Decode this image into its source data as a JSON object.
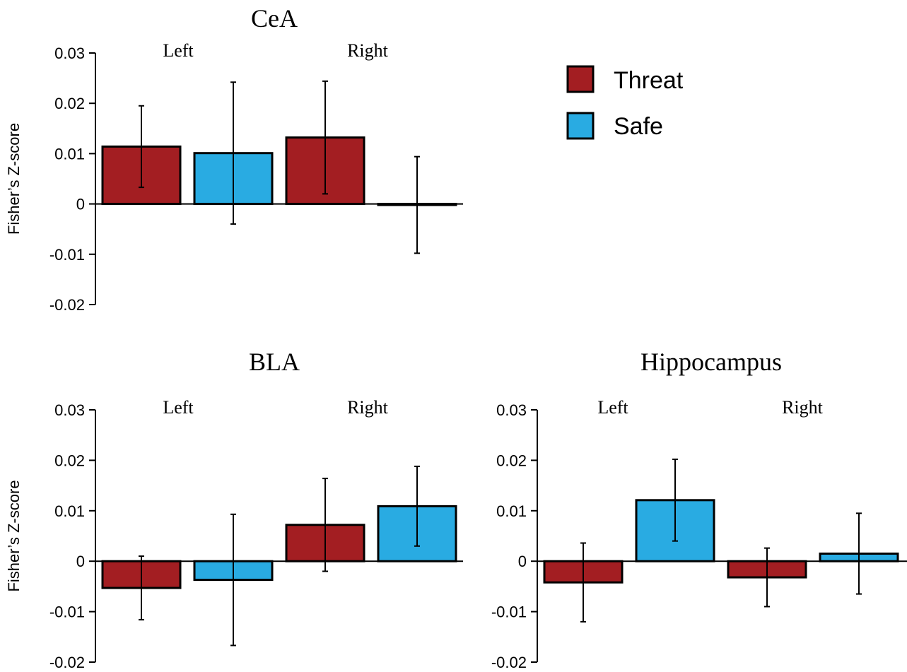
{
  "colors": {
    "threat": "#a31e22",
    "safe": "#29abe2",
    "outline": "#000000"
  },
  "legend": {
    "placement": "top-right",
    "items": [
      {
        "label": "Threat",
        "color": "#a31e22"
      },
      {
        "label": "Safe",
        "color": "#29abe2"
      }
    ]
  },
  "chart_data": [
    {
      "type": "bar",
      "title": "CeA",
      "ylabel": "Fisher’s Z-score",
      "ylim": [
        -0.02,
        0.03
      ],
      "yticks": [
        "0.03",
        "0.02",
        "0.01",
        "0",
        "-0.01",
        "-0.02"
      ],
      "groups": [
        "Left",
        "Right"
      ],
      "series": [
        {
          "name": "Threat",
          "values": [
            0.0114,
            0.0132
          ],
          "errors": [
            0.0081,
            0.0112
          ]
        },
        {
          "name": "Safe",
          "values": [
            0.0101,
            -0.0002
          ],
          "errors": [
            0.0141,
            0.0096
          ]
        }
      ]
    },
    {
      "type": "bar",
      "title": "BLA",
      "ylabel": "Fisher’s Z-score",
      "ylim": [
        -0.02,
        0.03
      ],
      "yticks": [
        "0.03",
        "0.02",
        "0.01",
        "0",
        "-0.01",
        "-0.02"
      ],
      "groups": [
        "Left",
        "Right"
      ],
      "series": [
        {
          "name": "Threat",
          "values": [
            -0.0053,
            0.0072
          ],
          "errors": [
            0.0063,
            0.0092
          ]
        },
        {
          "name": "Safe",
          "values": [
            -0.0037,
            0.0109
          ],
          "errors": [
            0.013,
            0.0079
          ]
        }
      ]
    },
    {
      "type": "bar",
      "title": "Hippocampus",
      "ylabel": "",
      "ylim": [
        -0.02,
        0.03
      ],
      "yticks": [
        "0.03",
        "0.02",
        "0.01",
        "0",
        "-0.01",
        "-0.02"
      ],
      "groups": [
        "Left",
        "Right"
      ],
      "series": [
        {
          "name": "Threat",
          "values": [
            -0.0042,
            -0.0032
          ],
          "errors": [
            0.0078,
            0.0058
          ]
        },
        {
          "name": "Safe",
          "values": [
            0.0121,
            0.0015
          ],
          "errors": [
            0.0081,
            0.008
          ]
        }
      ]
    }
  ]
}
